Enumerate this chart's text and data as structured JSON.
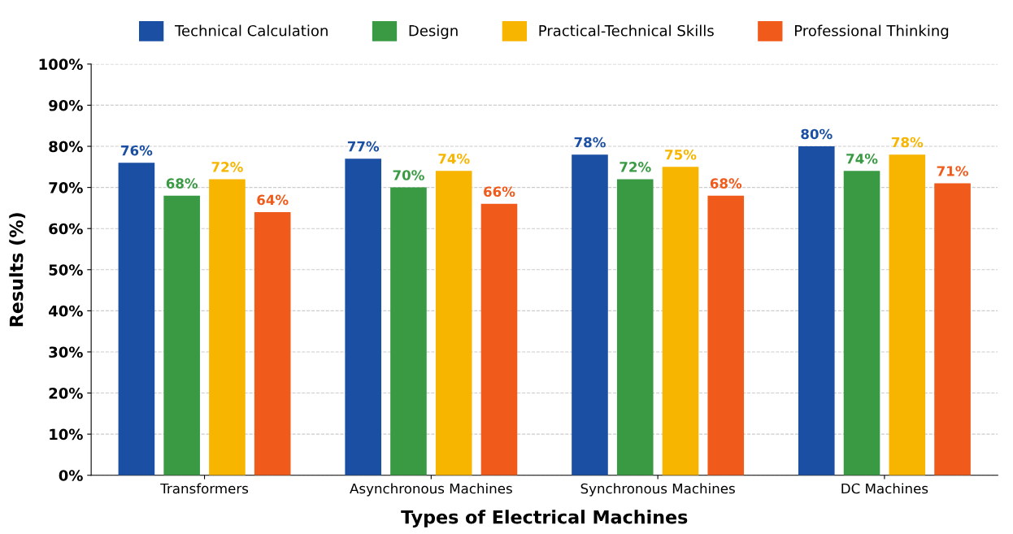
{
  "chart_data": {
    "type": "bar",
    "xlabel": "Types of Electrical Machines",
    "ylabel": "Results (%)",
    "categories": [
      "Transformers",
      "Asynchronous Machines",
      "Synchronous Machines",
      "DC Machines"
    ],
    "series": [
      {
        "name": "Technical Calculation",
        "color": "#1a4fa3",
        "values": [
          76,
          77,
          78,
          80
        ],
        "value_labels": [
          "76%",
          "77%",
          "78%",
          "80%"
        ]
      },
      {
        "name": "Design",
        "color": "#3a9a44",
        "values": [
          68,
          70,
          72,
          74
        ],
        "value_labels": [
          "68%",
          "70%",
          "72%",
          "74%"
        ]
      },
      {
        "name": "Practical-Technical Skills",
        "color": "#f7b500",
        "values": [
          72,
          74,
          75,
          78
        ],
        "value_labels": [
          "72%",
          "74%",
          "75%",
          "78%"
        ]
      },
      {
        "name": "Professional Thinking",
        "color": "#f05a1a",
        "values": [
          64,
          66,
          68,
          71
        ],
        "value_labels": [
          "64%",
          "66%",
          "68%",
          "71%"
        ]
      }
    ],
    "ylim": [
      0,
      100
    ],
    "yticks": [
      {
        "value": 0,
        "label": "0%"
      },
      {
        "value": 10,
        "label": "10%"
      },
      {
        "value": 20,
        "label": "20%"
      },
      {
        "value": 30,
        "label": "30%"
      },
      {
        "value": 40,
        "label": "40%"
      },
      {
        "value": 50,
        "label": "50%"
      },
      {
        "value": 60,
        "label": "60%"
      },
      {
        "value": 70,
        "label": "70%"
      },
      {
        "value": 80,
        "label": "80%"
      },
      {
        "value": 90,
        "label": "90%"
      },
      {
        "value": 100,
        "label": "100%"
      }
    ],
    "grid": "y",
    "legend": "top"
  }
}
